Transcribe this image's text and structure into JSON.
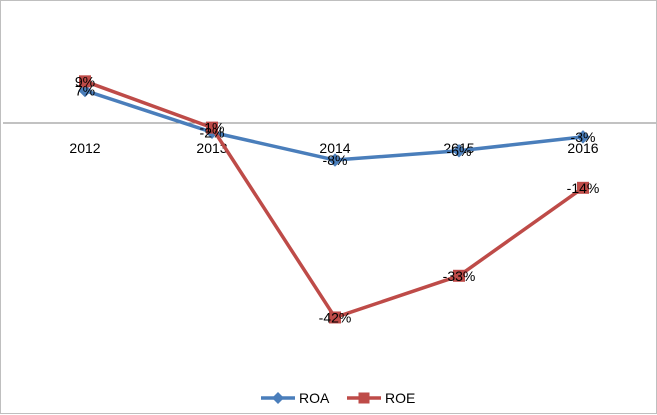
{
  "chart_data": {
    "type": "line",
    "categories": [
      "2012",
      "2013",
      "2014",
      "2015",
      "2016"
    ],
    "series": [
      {
        "name": "ROA",
        "color": "#4a7ebb",
        "marker": "diamond",
        "values": [
          7,
          -2,
          -8,
          -6,
          -3
        ],
        "labels": [
          "7%",
          "-2%",
          "-8%",
          "-6%",
          "-3%"
        ]
      },
      {
        "name": "ROE",
        "color": "#be4b48",
        "marker": "square",
        "values": [
          9,
          -1,
          -42,
          -33,
          -14
        ],
        "labels": [
          "9%",
          "-1%",
          "-42%",
          "-33%",
          "-14%"
        ]
      }
    ],
    "title": "",
    "xlabel": "",
    "ylabel": "",
    "ylim": [
      -55,
      20
    ],
    "grid": false,
    "legend": "bottom"
  }
}
